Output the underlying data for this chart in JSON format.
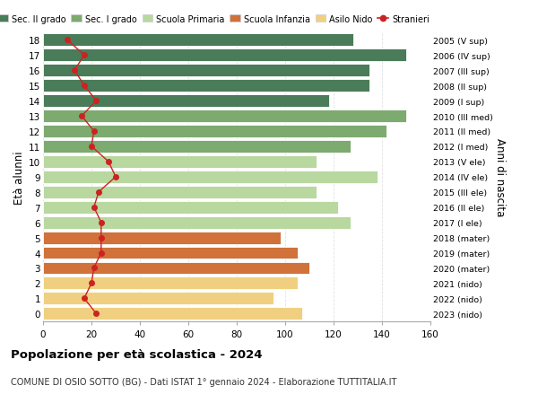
{
  "ages": [
    18,
    17,
    16,
    15,
    14,
    13,
    12,
    11,
    10,
    9,
    8,
    7,
    6,
    5,
    4,
    3,
    2,
    1,
    0
  ],
  "right_labels": [
    "2005 (V sup)",
    "2006 (IV sup)",
    "2007 (III sup)",
    "2008 (II sup)",
    "2009 (I sup)",
    "2010 (III med)",
    "2011 (II med)",
    "2012 (I med)",
    "2013 (V ele)",
    "2014 (IV ele)",
    "2015 (III ele)",
    "2016 (II ele)",
    "2017 (I ele)",
    "2018 (mater)",
    "2019 (mater)",
    "2020 (mater)",
    "2021 (nido)",
    "2022 (nido)",
    "2023 (nido)"
  ],
  "bar_values": [
    128,
    150,
    135,
    135,
    118,
    150,
    142,
    127,
    113,
    138,
    113,
    122,
    127,
    98,
    105,
    110,
    105,
    95,
    107
  ],
  "stranieri_values": [
    10,
    17,
    13,
    17,
    22,
    16,
    21,
    20,
    27,
    30,
    23,
    21,
    24,
    24,
    24,
    21,
    20,
    17,
    22
  ],
  "bar_colors": [
    "#4a7c59",
    "#4a7c59",
    "#4a7c59",
    "#4a7c59",
    "#4a7c59",
    "#7daa6f",
    "#7daa6f",
    "#7daa6f",
    "#b8d8a0",
    "#b8d8a0",
    "#b8d8a0",
    "#b8d8a0",
    "#b8d8a0",
    "#d0723a",
    "#d0723a",
    "#d0723a",
    "#f0d080",
    "#f0d080",
    "#f0d080"
  ],
  "legend_labels": [
    "Sec. II grado",
    "Sec. I grado",
    "Scuola Primaria",
    "Scuola Infanzia",
    "Asilo Nido",
    "Stranieri"
  ],
  "legend_colors": [
    "#4a7c59",
    "#7daa6f",
    "#b8d8a0",
    "#d0723a",
    "#f0d080",
    "#cc2222"
  ],
  "ylabel_left": "Età alunni",
  "ylabel_right": "Anni di nascita",
  "title": "Popolazione per età scolastica - 2024",
  "subtitle": "COMUNE DI OSIO SOTTO (BG) - Dati ISTAT 1° gennaio 2024 - Elaborazione TUTTITALIA.IT",
  "stranieri_color": "#cc2222",
  "xlim": [
    0,
    160
  ],
  "xticks": [
    0,
    20,
    40,
    60,
    80,
    100,
    120,
    140,
    160
  ],
  "bg_color": "#ffffff",
  "grid_color": "#e0e0e0"
}
